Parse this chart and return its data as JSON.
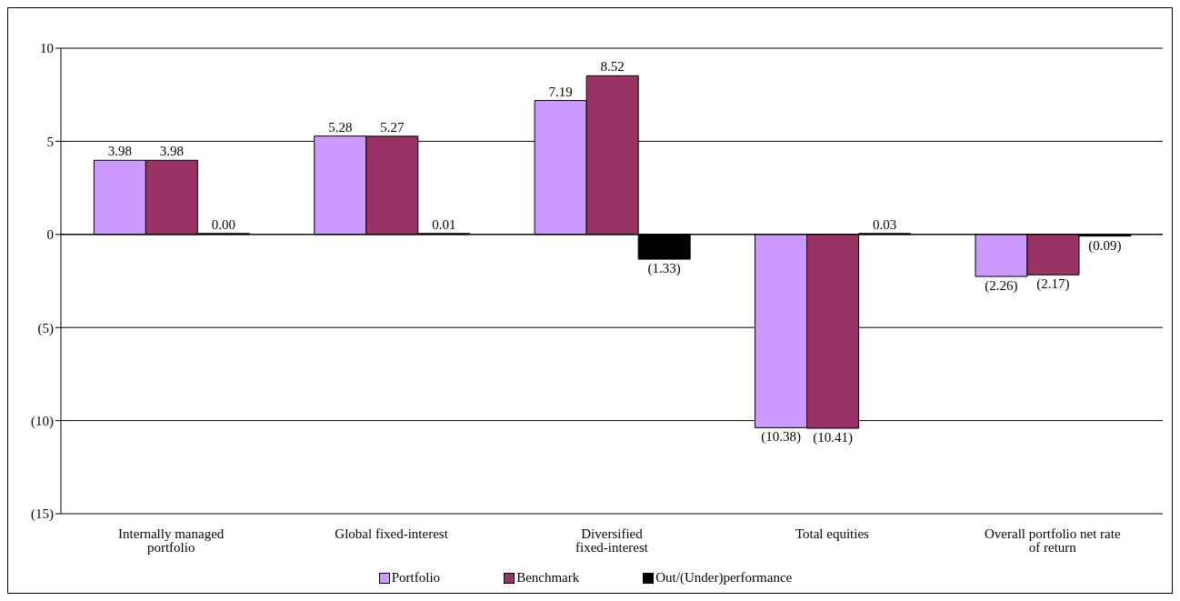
{
  "chart_data": {
    "type": "bar",
    "categories": [
      "Internally managed portfolio",
      "Global fixed-interest",
      "Diversified fixed-interest",
      "Total equities",
      "Overall portfolio net rate of return"
    ],
    "series": [
      {
        "name": "Portfolio",
        "color": "#cc99ff",
        "values": [
          3.98,
          5.28,
          7.19,
          -10.38,
          -2.26
        ],
        "value_labels": [
          "3.98",
          "5.28",
          "7.19",
          "(10.38)",
          "(2.26)"
        ]
      },
      {
        "name": "Benchmark",
        "color": "#993366",
        "values": [
          3.98,
          5.27,
          8.52,
          -10.41,
          -2.17
        ],
        "value_labels": [
          "3.98",
          "5.27",
          "8.52",
          "(10.41)",
          "(2.17)"
        ]
      },
      {
        "name": "Out/(Under)performance",
        "color": "#000000",
        "values": [
          0.0,
          0.01,
          -1.33,
          0.03,
          -0.09
        ],
        "value_labels": [
          "0.00",
          "0.01",
          "(1.33)",
          "0.03",
          "(0.09)"
        ]
      }
    ],
    "ylim": [
      -15,
      10
    ],
    "yticks": [
      {
        "value": -15,
        "label": "(15)"
      },
      {
        "value": -10,
        "label": "(10)"
      },
      {
        "value": -5,
        "label": "(5)"
      },
      0,
      5,
      10
    ],
    "grid": "y",
    "legend": "bottom"
  }
}
